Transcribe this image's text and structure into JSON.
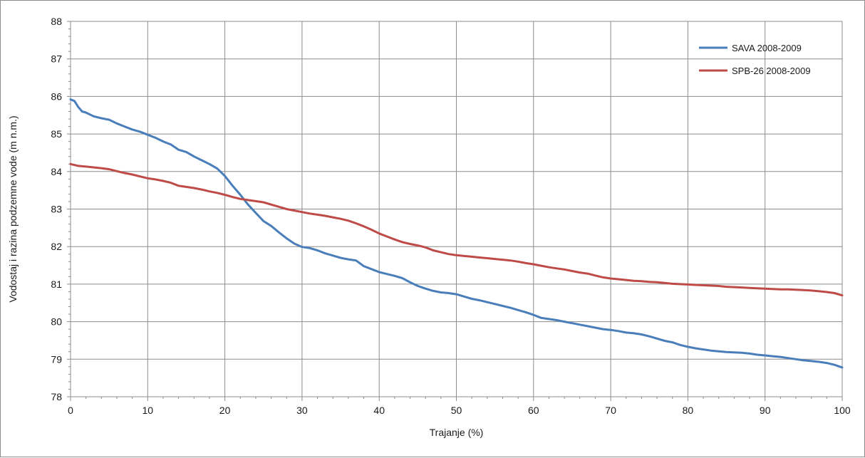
{
  "chart_data": {
    "type": "line",
    "xlabel": "Trajanje (%)",
    "ylabel": "Vodostaj i razina podzemne vode (m n.m.)",
    "xlim": [
      0,
      100
    ],
    "ylim": [
      78,
      88
    ],
    "x_ticks": [
      0,
      10,
      20,
      30,
      40,
      50,
      60,
      70,
      80,
      90,
      100
    ],
    "y_ticks": [
      78,
      79,
      80,
      81,
      82,
      83,
      84,
      85,
      86,
      87,
      88
    ],
    "grid": true,
    "legend_position": "top-right",
    "series": [
      {
        "name": "SAVA 2008-2009",
        "color": "#4a7ebb",
        "points": [
          [
            0,
            85.92
          ],
          [
            0.5,
            85.88
          ],
          [
            1,
            85.72
          ],
          [
            1.5,
            85.6
          ],
          [
            2,
            85.57
          ],
          [
            3,
            85.47
          ],
          [
            4,
            85.42
          ],
          [
            5,
            85.38
          ],
          [
            6,
            85.28
          ],
          [
            7,
            85.2
          ],
          [
            8,
            85.12
          ],
          [
            9,
            85.06
          ],
          [
            10,
            84.98
          ],
          [
            11,
            84.9
          ],
          [
            12,
            84.8
          ],
          [
            13,
            84.72
          ],
          [
            14,
            84.58
          ],
          [
            15,
            84.52
          ],
          [
            16,
            84.4
          ],
          [
            17,
            84.3
          ],
          [
            18,
            84.2
          ],
          [
            19,
            84.08
          ],
          [
            20,
            83.88
          ],
          [
            21,
            83.62
          ],
          [
            22,
            83.38
          ],
          [
            23,
            83.12
          ],
          [
            24,
            82.9
          ],
          [
            25,
            82.68
          ],
          [
            26,
            82.55
          ],
          [
            27,
            82.38
          ],
          [
            28,
            82.22
          ],
          [
            29,
            82.08
          ],
          [
            30,
            81.99
          ],
          [
            31,
            81.96
          ],
          [
            32,
            81.9
          ],
          [
            33,
            81.82
          ],
          [
            34,
            81.76
          ],
          [
            35,
            81.7
          ],
          [
            36,
            81.66
          ],
          [
            37,
            81.63
          ],
          [
            38,
            81.48
          ],
          [
            39,
            81.4
          ],
          [
            40,
            81.32
          ],
          [
            41,
            81.27
          ],
          [
            42,
            81.22
          ],
          [
            43,
            81.16
          ],
          [
            44,
            81.05
          ],
          [
            45,
            80.95
          ],
          [
            46,
            80.88
          ],
          [
            47,
            80.82
          ],
          [
            48,
            80.78
          ],
          [
            49,
            80.76
          ],
          [
            50,
            80.73
          ],
          [
            51,
            80.67
          ],
          [
            52,
            80.61
          ],
          [
            53,
            80.57
          ],
          [
            54,
            80.52
          ],
          [
            55,
            80.47
          ],
          [
            56,
            80.42
          ],
          [
            57,
            80.37
          ],
          [
            58,
            80.31
          ],
          [
            59,
            80.25
          ],
          [
            60,
            80.18
          ],
          [
            61,
            80.1
          ],
          [
            62,
            80.07
          ],
          [
            63,
            80.04
          ],
          [
            64,
            80.0
          ],
          [
            65,
            79.96
          ],
          [
            66,
            79.92
          ],
          [
            67,
            79.88
          ],
          [
            68,
            79.84
          ],
          [
            69,
            79.8
          ],
          [
            70,
            79.78
          ],
          [
            71,
            79.75
          ],
          [
            72,
            79.71
          ],
          [
            73,
            79.69
          ],
          [
            74,
            79.66
          ],
          [
            75,
            79.61
          ],
          [
            76,
            79.55
          ],
          [
            77,
            79.49
          ],
          [
            78,
            79.45
          ],
          [
            79,
            79.38
          ],
          [
            80,
            79.33
          ],
          [
            81,
            79.29
          ],
          [
            82,
            79.26
          ],
          [
            83,
            79.23
          ],
          [
            84,
            79.21
          ],
          [
            85,
            79.19
          ],
          [
            86,
            79.18
          ],
          [
            87,
            79.17
          ],
          [
            88,
            79.15
          ],
          [
            89,
            79.12
          ],
          [
            90,
            79.1
          ],
          [
            91,
            79.08
          ],
          [
            92,
            79.06
          ],
          [
            93,
            79.03
          ],
          [
            94,
            79.0
          ],
          [
            95,
            78.97
          ],
          [
            96,
            78.95
          ],
          [
            97,
            78.93
          ],
          [
            98,
            78.9
          ],
          [
            99,
            78.85
          ],
          [
            100,
            78.78
          ]
        ]
      },
      {
        "name": "SPB-26 2008-2009",
        "color": "#be4b48",
        "points": [
          [
            0,
            84.2
          ],
          [
            1,
            84.15
          ],
          [
            2,
            84.13
          ],
          [
            3,
            84.11
          ],
          [
            4,
            84.09
          ],
          [
            5,
            84.06
          ],
          [
            6,
            84.01
          ],
          [
            7,
            83.96
          ],
          [
            8,
            83.92
          ],
          [
            9,
            83.87
          ],
          [
            10,
            83.82
          ],
          [
            11,
            83.79
          ],
          [
            12,
            83.75
          ],
          [
            13,
            83.7
          ],
          [
            14,
            83.62
          ],
          [
            15,
            83.59
          ],
          [
            16,
            83.56
          ],
          [
            17,
            83.52
          ],
          [
            18,
            83.47
          ],
          [
            19,
            83.43
          ],
          [
            20,
            83.38
          ],
          [
            21,
            83.32
          ],
          [
            22,
            83.27
          ],
          [
            23,
            83.24
          ],
          [
            24,
            83.21
          ],
          [
            25,
            83.18
          ],
          [
            26,
            83.12
          ],
          [
            27,
            83.06
          ],
          [
            28,
            83.0
          ],
          [
            29,
            82.96
          ],
          [
            30,
            82.92
          ],
          [
            31,
            82.88
          ],
          [
            32,
            82.85
          ],
          [
            33,
            82.82
          ],
          [
            34,
            82.78
          ],
          [
            35,
            82.74
          ],
          [
            36,
            82.69
          ],
          [
            37,
            82.62
          ],
          [
            38,
            82.54
          ],
          [
            39,
            82.45
          ],
          [
            40,
            82.35
          ],
          [
            41,
            82.27
          ],
          [
            42,
            82.19
          ],
          [
            43,
            82.12
          ],
          [
            44,
            82.07
          ],
          [
            45,
            82.03
          ],
          [
            46,
            81.98
          ],
          [
            47,
            81.9
          ],
          [
            48,
            81.85
          ],
          [
            49,
            81.8
          ],
          [
            50,
            81.77
          ],
          [
            51,
            81.75
          ],
          [
            52,
            81.73
          ],
          [
            53,
            81.71
          ],
          [
            54,
            81.69
          ],
          [
            55,
            81.67
          ],
          [
            56,
            81.65
          ],
          [
            57,
            81.63
          ],
          [
            58,
            81.6
          ],
          [
            59,
            81.56
          ],
          [
            60,
            81.53
          ],
          [
            61,
            81.49
          ],
          [
            62,
            81.45
          ],
          [
            63,
            81.42
          ],
          [
            64,
            81.39
          ],
          [
            65,
            81.35
          ],
          [
            66,
            81.31
          ],
          [
            67,
            81.28
          ],
          [
            68,
            81.23
          ],
          [
            69,
            81.18
          ],
          [
            70,
            81.15
          ],
          [
            71,
            81.13
          ],
          [
            72,
            81.11
          ],
          [
            73,
            81.09
          ],
          [
            74,
            81.08
          ],
          [
            75,
            81.06
          ],
          [
            76,
            81.05
          ],
          [
            77,
            81.03
          ],
          [
            78,
            81.01
          ],
          [
            79,
            81.0
          ],
          [
            80,
            80.99
          ],
          [
            81,
            80.98
          ],
          [
            82,
            80.97
          ],
          [
            83,
            80.96
          ],
          [
            84,
            80.95
          ],
          [
            85,
            80.93
          ],
          [
            86,
            80.92
          ],
          [
            87,
            80.91
          ],
          [
            88,
            80.9
          ],
          [
            89,
            80.89
          ],
          [
            90,
            80.88
          ],
          [
            91,
            80.87
          ],
          [
            92,
            80.86
          ],
          [
            93,
            80.86
          ],
          [
            94,
            80.85
          ],
          [
            95,
            80.84
          ],
          [
            96,
            80.83
          ],
          [
            97,
            80.81
          ],
          [
            98,
            80.79
          ],
          [
            99,
            80.76
          ],
          [
            100,
            80.7
          ]
        ]
      }
    ]
  }
}
